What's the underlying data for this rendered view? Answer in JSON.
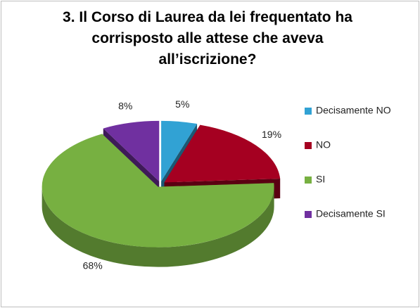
{
  "chart_data": {
    "type": "pie",
    "title": "3. Il Corso di Laurea da lei frequentato ha corrisposto alle attese che aveva all’iscrizione?",
    "categories": [
      "Decisamente NO",
      "NO",
      "SI",
      "Decisamente SI"
    ],
    "values": [
      5,
      19,
      68,
      8
    ],
    "value_labels": [
      "5%",
      "19%",
      "68%",
      "8%"
    ],
    "colors": [
      "#31a2d4",
      "#a50021",
      "#77b041",
      "#7030a0"
    ],
    "legend": "right"
  }
}
